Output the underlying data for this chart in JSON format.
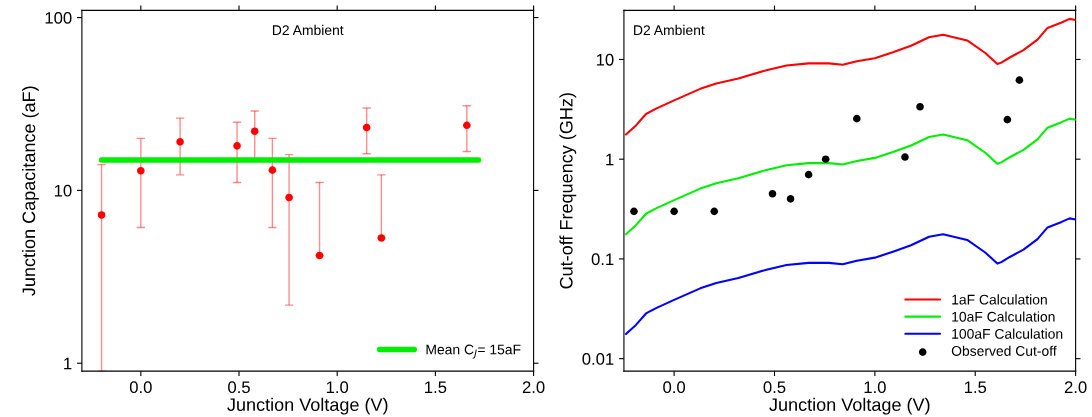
{
  "chart_data": [
    {
      "type": "scatter",
      "xlabel": "Junction Voltage (V)",
      "ylabel": "Junction Capacitance (aF)",
      "log": "y",
      "xlim": [
        -0.3,
        2.0
      ],
      "xticks": [
        {
          "value": 0,
          "label": "0.0"
        },
        {
          "value": 0.5,
          "label": "0.5"
        },
        {
          "value": 1,
          "label": "1.0"
        },
        {
          "value": 1.5,
          "label": "1.5"
        },
        {
          "value": 2,
          "label": "2.0"
        }
      ],
      "ylim": [
        0.9,
        110
      ],
      "yticks": [
        1,
        10,
        100
      ],
      "grid": false,
      "legend": "bottom right",
      "annotations": [
        "D2 Ambient"
      ],
      "series": [
        {
          "marker": "circle",
          "color": "#ff0000",
          "x": [
            -0.2,
            0.0,
            0.2,
            0.49,
            0.58,
            0.67,
            0.755,
            0.91,
            1.15,
            1.225,
            1.66
          ],
          "values": [
            7.2,
            13.0,
            19.1,
            18.1,
            22.0,
            13.1,
            9.1,
            4.2,
            23.1,
            5.3,
            23.8
          ],
          "errors": [
            [
              0.9,
              14.1
            ],
            [
              6.1,
              20
            ],
            [
              12.3,
              26.2
            ],
            [
              11.1,
              24.8
            ],
            [
              15.2,
              28.8
            ],
            [
              6.1,
              20
            ],
            [
              2.17,
              16.1
            ],
            [
              4.2,
              11.1
            ],
            [
              16.3,
              30.0
            ],
            [
              5.3,
              12.3
            ],
            [
              16.8,
              30.9
            ]
          ]
        },
        {
          "type": "line",
          "name": "Mean C$_{J}$= 15aF",
          "color": "#00ee00",
          "line_style": "solid",
          "x": [
            -0.2,
            1.72
          ],
          "values": [
            15,
            15
          ]
        }
      ]
    },
    {
      "type": "line",
      "xlabel": "Junction Voltage (V)",
      "ylabel": "Cut-off Frequency (GHz)",
      "log": "y",
      "xlim": [
        -0.25,
        2.0
      ],
      "xticks": [
        {
          "value": 0,
          "label": "0.0"
        },
        {
          "value": 0.5,
          "label": "0.5"
        },
        {
          "value": 1,
          "label": "1.0"
        },
        {
          "value": 1.5,
          "label": "1.5"
        },
        {
          "value": 2,
          "label": "2.0"
        }
      ],
      "ylim": [
        0.0075,
        31
      ],
      "yticks": [
        0.01,
        0.1,
        1,
        10
      ],
      "grid": false,
      "legend": "bottom right",
      "line_style": "solid",
      "annotations": [
        "D2 Ambient"
      ],
      "x": [
        -0.24,
        -0.19,
        -0.14,
        -0.09,
        0.0,
        0.13,
        0.21,
        0.32,
        0.46,
        0.56,
        0.67,
        0.77,
        0.84,
        0.91,
        1.0,
        1.09,
        1.18,
        1.27,
        1.34,
        1.46,
        1.55,
        1.61,
        1.63,
        1.67,
        1.74,
        1.81,
        1.86,
        1.93,
        1.97,
        2.0
      ],
      "series": [
        {
          "name": "1aF Calculation",
          "color": "#ff0000",
          "values": [
            1.77,
            2.18,
            2.84,
            3.21,
            3.89,
            5.07,
            5.74,
            6.45,
            7.8,
            8.69,
            9.13,
            9.13,
            8.83,
            9.59,
            10.3,
            11.8,
            13.7,
            16.7,
            17.7,
            15.5,
            11.6,
            8.98,
            9.29,
            10.4,
            12.4,
            15.8,
            20.7,
            23.5,
            25.5,
            24.9
          ]
        },
        {
          "name": "10aF Calculation",
          "color": "#00ee00",
          "values": [
            0.177,
            0.218,
            0.284,
            0.321,
            0.389,
            0.507,
            0.574,
            0.645,
            0.78,
            0.869,
            0.913,
            0.913,
            0.883,
            0.959,
            1.03,
            1.18,
            1.37,
            1.67,
            1.77,
            1.55,
            1.16,
            0.898,
            0.929,
            1.04,
            1.24,
            1.58,
            2.07,
            2.35,
            2.55,
            2.49
          ]
        },
        {
          "name": "100aF Calculation",
          "color": "#0000ff",
          "values": [
            0.0177,
            0.0218,
            0.0284,
            0.0321,
            0.0389,
            0.0507,
            0.0574,
            0.0645,
            0.078,
            0.0869,
            0.0913,
            0.0913,
            0.0883,
            0.0959,
            0.103,
            0.118,
            0.137,
            0.167,
            0.177,
            0.155,
            0.116,
            0.0898,
            0.0929,
            0.104,
            0.124,
            0.158,
            0.207,
            0.235,
            0.255,
            0.249
          ]
        },
        {
          "type": "scatter",
          "name": "Observed Cut-off",
          "color": "#000000",
          "marker": "circle",
          "x": [
            -0.2,
            0.0,
            0.2,
            0.49,
            0.58,
            0.67,
            0.755,
            0.91,
            1.15,
            1.225,
            1.66,
            1.72
          ],
          "values": [
            0.3,
            0.3,
            0.3,
            0.45,
            0.4,
            0.7,
            1.0,
            2.55,
            1.05,
            3.35,
            2.49,
            6.2
          ]
        }
      ]
    }
  ]
}
